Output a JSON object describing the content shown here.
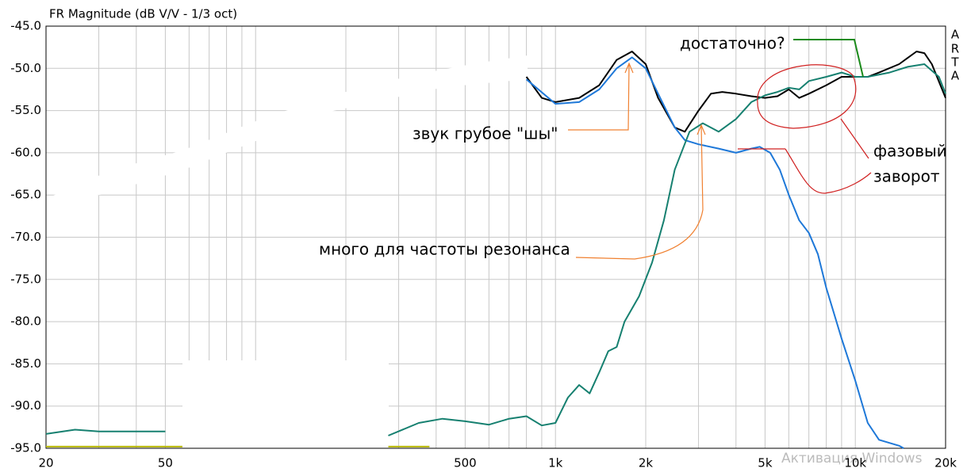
{
  "chart_data": {
    "type": "line",
    "title": "FR Magnitude (dB V/V - 1/3 oct)",
    "brand": [
      "A",
      "R",
      "T",
      "A"
    ],
    "xscale": "log",
    "xlim": [
      20,
      20000
    ],
    "ylim": [
      -95,
      -45
    ],
    "grid": true,
    "xticks": [
      20,
      50,
      500,
      {
        "value": 1000,
        "label": "1k"
      },
      {
        "value": 2000,
        "label": "2k"
      },
      {
        "value": 5000,
        "label": "5k"
      },
      {
        "value": 10000,
        "label": "10k"
      },
      {
        "value": 20000,
        "label": "20k"
      }
    ],
    "xgrid": [
      30,
      40,
      60,
      70,
      80,
      90,
      100,
      200,
      300,
      400,
      600,
      700,
      800,
      900,
      3000,
      4000,
      6000,
      7000,
      8000,
      9000
    ],
    "yticks": [
      {
        "value": -45,
        "label": "-45.0"
      },
      {
        "value": -50,
        "label": "-50.0"
      },
      {
        "value": -55,
        "label": "-55.0"
      },
      {
        "value": -60,
        "label": "-60.0"
      },
      {
        "value": -65,
        "label": "-65.0"
      },
      {
        "value": -70,
        "label": "-70.0"
      },
      {
        "value": -75,
        "label": "-75.0"
      },
      {
        "value": -80,
        "label": "-80.0"
      },
      {
        "value": -85,
        "label": "-85.0"
      },
      {
        "value": -90,
        "label": "-90.0"
      },
      {
        "value": -95,
        "label": "-95.0"
      }
    ],
    "series": [
      {
        "color": "#000000",
        "x": [
          800,
          900,
          1000,
          1200,
          1400,
          1600,
          1800,
          2000,
          2200,
          2500,
          2700,
          3000,
          3300,
          3600,
          4000,
          4500,
          5000,
          5500,
          6000,
          6500,
          7000,
          8000,
          9000,
          10000,
          11000,
          12000,
          14000,
          16000,
          17000,
          18000,
          20000
        ],
        "values": [
          -51,
          -53.5,
          -54,
          -53.5,
          -52,
          -49,
          -48,
          -49.5,
          -53.5,
          -57,
          -57.5,
          -55,
          -53,
          -52.8,
          -53,
          -53.3,
          -53.5,
          -53.3,
          -52.5,
          -53.5,
          -53,
          -52,
          -51,
          -51,
          -51,
          -50.5,
          -49.5,
          -48,
          -48.2,
          -49.5,
          -53.5
        ]
      },
      {
        "color": "#1e78d8",
        "x": [
          800,
          1000,
          1200,
          1400,
          1600,
          1800,
          2000,
          2200,
          2500,
          2700,
          3000,
          3500,
          4000,
          4500,
          4800,
          5200,
          5600,
          6000,
          6500,
          7000,
          7500,
          8000,
          9000,
          10000,
          11000,
          12000,
          14000,
          14500
        ],
        "values": [
          -51.3,
          -54.2,
          -54,
          -52.5,
          -50,
          -48.7,
          -50,
          -53,
          -57,
          -58.5,
          -59,
          -59.5,
          -60,
          -59.5,
          -59.3,
          -60,
          -62,
          -65,
          -68,
          -69.5,
          -72,
          -76,
          -82,
          -87,
          -92,
          -94,
          -94.7,
          -95
        ]
      },
      {
        "color": "#168070",
        "x": [
          20,
          25,
          30,
          40,
          50,
          57,
          277,
          350,
          420,
          500,
          600,
          700,
          800,
          900,
          1000,
          1100,
          1200,
          1300,
          1400,
          1500,
          1600,
          1700,
          1900,
          2100,
          2300,
          2500,
          2800,
          3100,
          3500,
          4000,
          4500,
          5000,
          5500,
          6000,
          6500,
          7000,
          8000,
          9000,
          10000,
          11000,
          13000,
          15000,
          17000,
          19000,
          20000
        ],
        "values": [
          -93.3,
          -92.8,
          -93,
          -93,
          -93,
          null,
          -93.5,
          -92,
          -91.5,
          -91.8,
          -92.2,
          -91.5,
          -91.2,
          -92.3,
          -92,
          -89,
          -87.5,
          -88.5,
          -86,
          -83.5,
          -83,
          -80,
          -77,
          -73,
          -68,
          -62,
          -57.5,
          -56.5,
          -57.5,
          -56,
          -54,
          -53.2,
          -52.8,
          -52.3,
          -52.5,
          -51.5,
          -51,
          -50.5,
          -51,
          -51,
          -50.5,
          -49.8,
          -49.5,
          -51,
          -53
        ]
      },
      {
        "color": "#b8b800",
        "x": [
          20,
          57,
          60,
          277,
          380
        ],
        "values": [
          -94.8,
          -94.8,
          null,
          -94.8,
          -94.8
        ]
      }
    ],
    "annotations": [
      "достаточно?",
      "звук грубое \"шы\"",
      "фазовый",
      "заворот",
      "много для частоты резонанса"
    ],
    "watermark": "Активация Windows"
  }
}
